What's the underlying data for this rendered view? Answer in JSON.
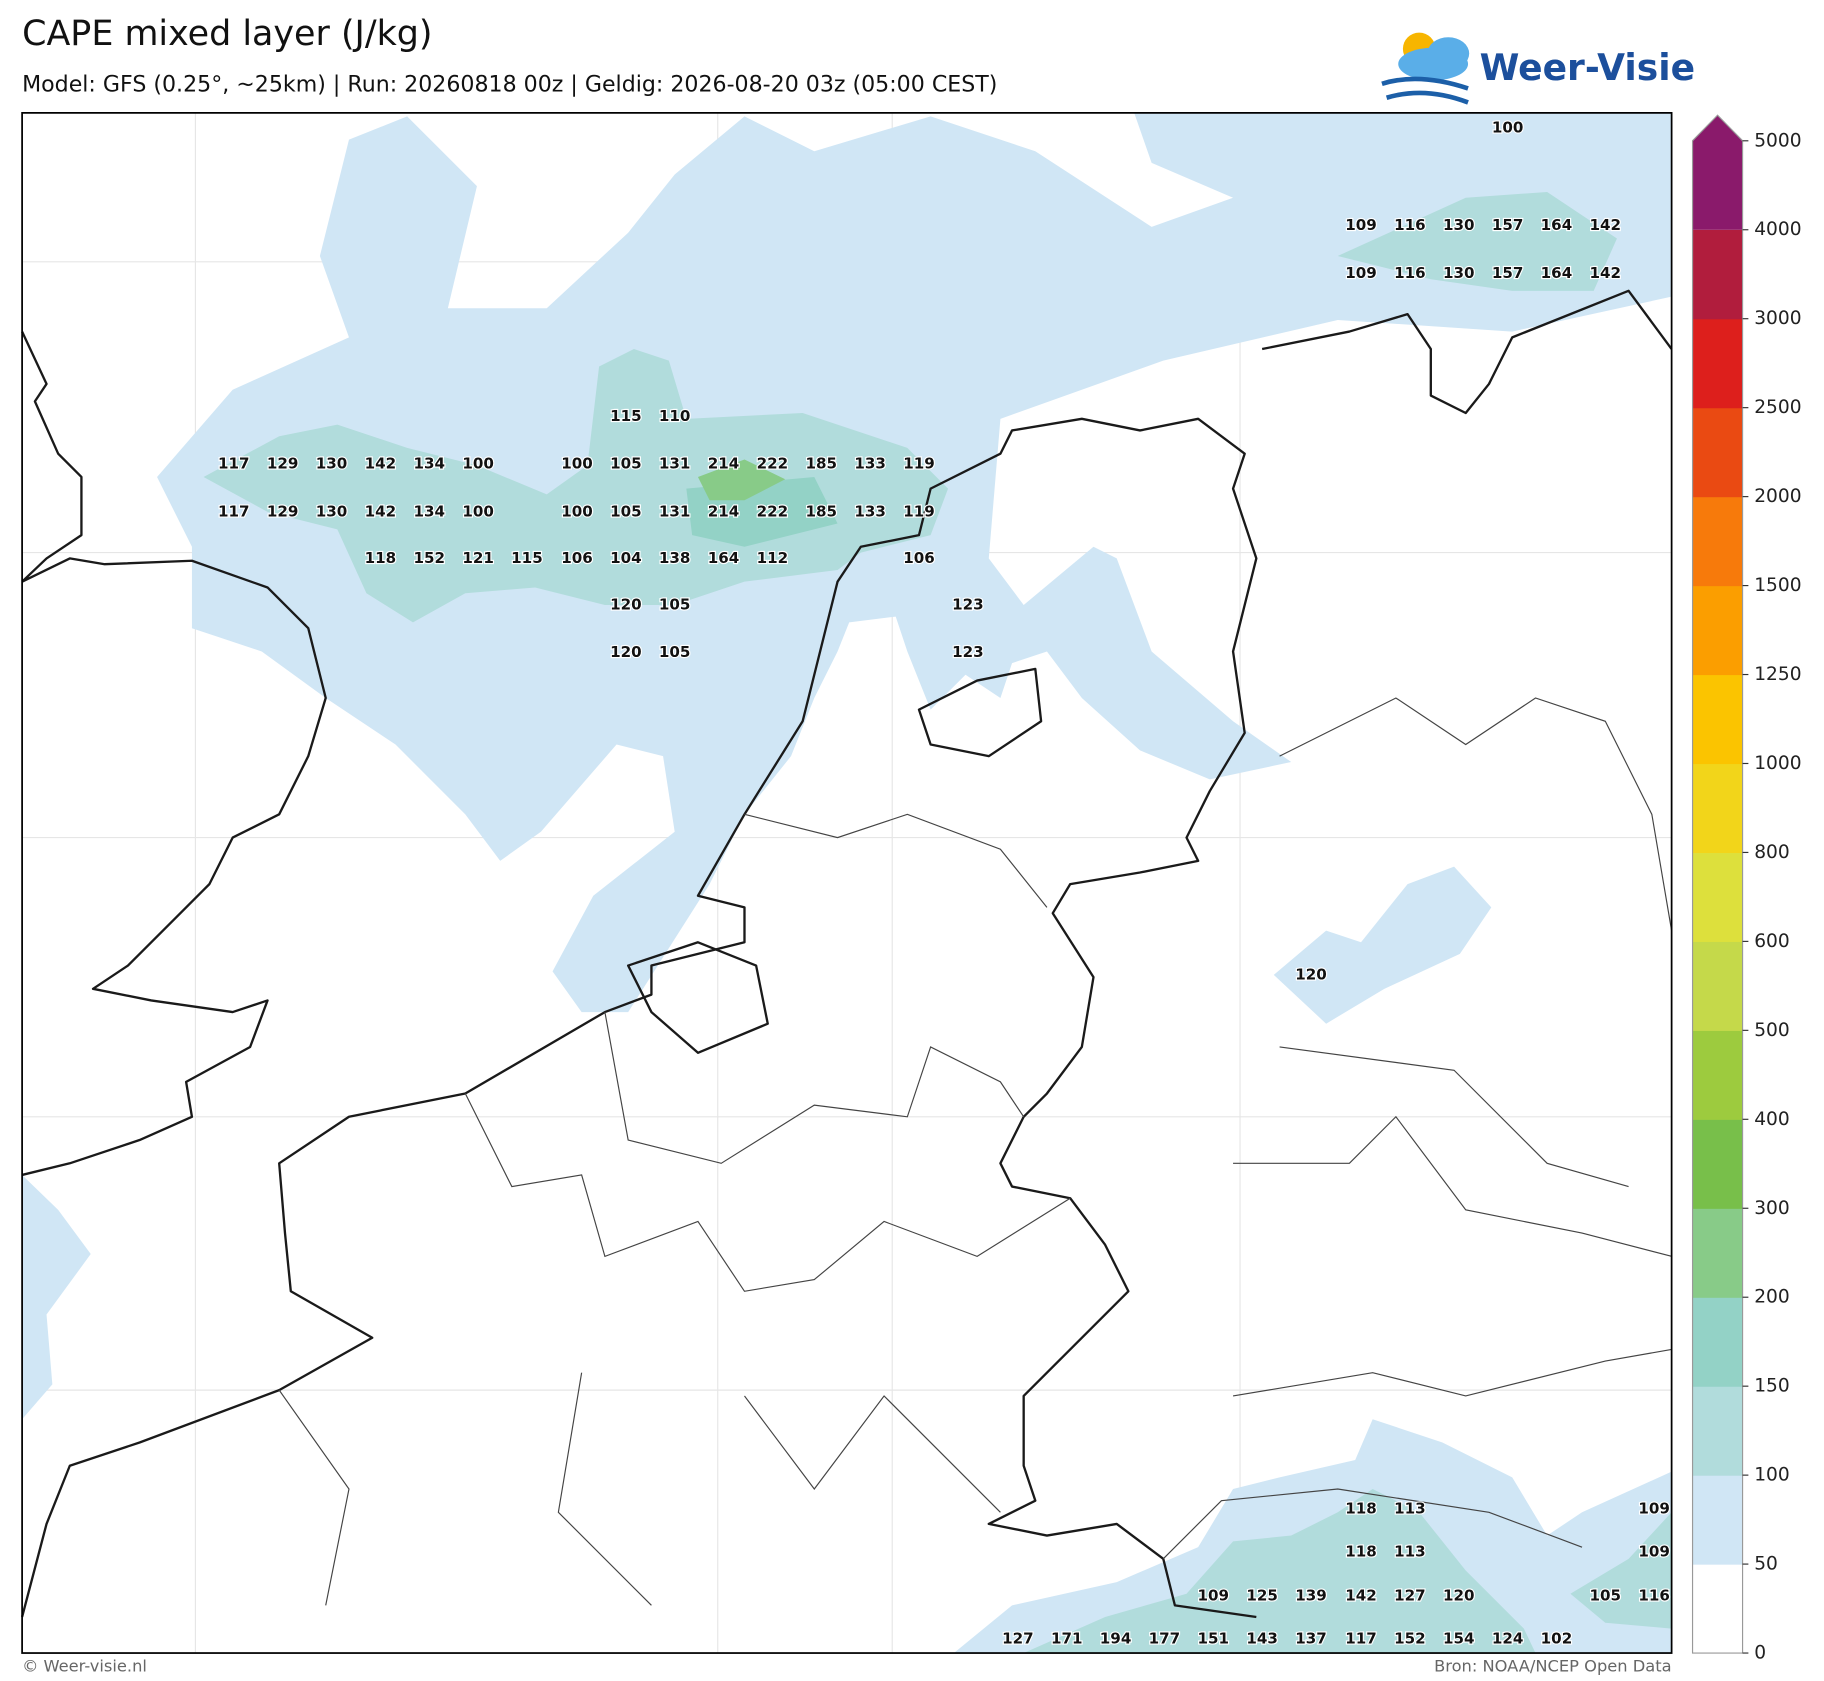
{
  "header": {
    "title": "CAPE mixed layer (J/kg)",
    "subtitle": "Model: GFS (0.25°, ~25km)  |  Run: 20260818 00z  |  Geldig: 2026-08-20 03z (05:00 CEST)",
    "logo": "Weer-Visie"
  },
  "map": {
    "labels": [
      100,
      109,
      116,
      130,
      157,
      164,
      142,
      109,
      116,
      130,
      157,
      164,
      142,
      115,
      110,
      117,
      129,
      130,
      142,
      134,
      100,
      100,
      105,
      131,
      214,
      222,
      185,
      133,
      119,
      117,
      129,
      130,
      142,
      134,
      100,
      100,
      105,
      131,
      214,
      222,
      185,
      133,
      119,
      118,
      152,
      121,
      115,
      106,
      104,
      138,
      164,
      112,
      106,
      120,
      105,
      123,
      120,
      105,
      123,
      120,
      118,
      113,
      109,
      118,
      113,
      109,
      109,
      125,
      139,
      142,
      127,
      120,
      105,
      116,
      127,
      171,
      194,
      177,
      151,
      143,
      137,
      117,
      152,
      154,
      124,
      102
    ]
  },
  "colorbar": {
    "ticks": [
      0,
      50,
      100,
      150,
      200,
      300,
      400,
      500,
      600,
      800,
      1000,
      1250,
      1500,
      2000,
      2500,
      3000,
      4000,
      5000
    ],
    "colors": [
      "#ffffff",
      "#d0e6f5",
      "#b1dcdc",
      "#93d2c6",
      "#88cb88",
      "#78bf4a",
      "#9dcb3e",
      "#c5d94a",
      "#dde03c",
      "#f2d51a",
      "#fbc400",
      "#fb9e00",
      "#f77a0b",
      "#ea4a12",
      "#dd1f1c",
      "#b11d3d",
      "#8a1a6b"
    ]
  },
  "footer": {
    "left": "© Weer-visie.nl",
    "right": "Bron: NOAA/NCEP Open Data"
  }
}
